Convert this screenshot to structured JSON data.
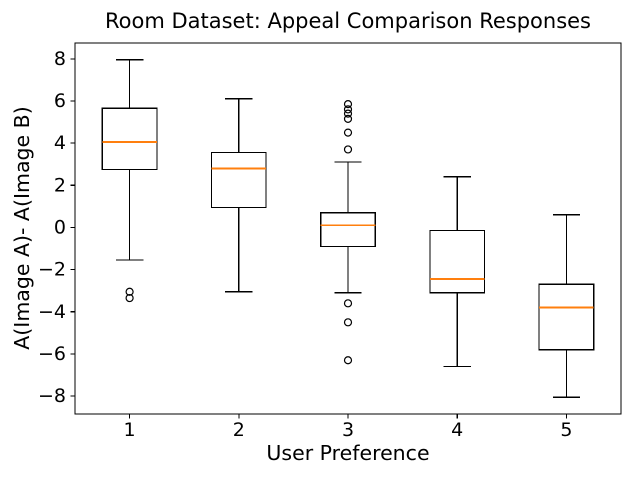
{
  "chart_data": {
    "type": "boxplot",
    "title": "Room Dataset: Appeal Comparison Responses",
    "xlabel": "User Preference",
    "ylabel": "A(Image A)- A(Image B)",
    "categories": [
      "1",
      "2",
      "3",
      "4",
      "5"
    ],
    "xlim": [
      0.5,
      5.5
    ],
    "ylim": [
      -8.85,
      8.75
    ],
    "yticks": [
      -8,
      -6,
      -4,
      -2,
      0,
      2,
      4,
      6,
      8
    ],
    "ytick_labels": [
      "−8",
      "−6",
      "−4",
      "−2",
      "0",
      "2",
      "4",
      "6",
      "8"
    ],
    "grid": false,
    "legend": null,
    "box_width": 0.5,
    "colors": {
      "median": "#ff7f0e",
      "box_edge": "#000000",
      "whisker": "#000000",
      "flier_edge": "#000000",
      "background": "#ffffff",
      "text": "#000000"
    },
    "boxes": [
      {
        "x": 1,
        "label": "1",
        "whislo": -1.55,
        "q1": 2.75,
        "med": 4.05,
        "q3": 5.65,
        "whishi": 7.95,
        "fliers": [
          -3.05,
          -3.35
        ]
      },
      {
        "x": 2,
        "label": "2",
        "whislo": -3.05,
        "q1": 0.95,
        "med": 2.8,
        "q3": 3.55,
        "whishi": 6.1,
        "fliers": []
      },
      {
        "x": 3,
        "label": "3",
        "whislo": -3.1,
        "q1": -0.9,
        "med": 0.1,
        "q3": 0.7,
        "whishi": 3.1,
        "fliers": [
          5.85,
          5.6,
          5.4,
          5.15,
          4.5,
          3.7,
          -3.6,
          -4.5,
          -6.3
        ]
      },
      {
        "x": 4,
        "label": "4",
        "whislo": -6.6,
        "q1": -3.1,
        "med": -2.45,
        "q3": -0.15,
        "whishi": 2.4,
        "fliers": []
      },
      {
        "x": 5,
        "label": "5",
        "whislo": -8.05,
        "q1": -5.8,
        "med": -3.8,
        "q3": -2.7,
        "whishi": 0.6,
        "fliers": []
      }
    ]
  }
}
